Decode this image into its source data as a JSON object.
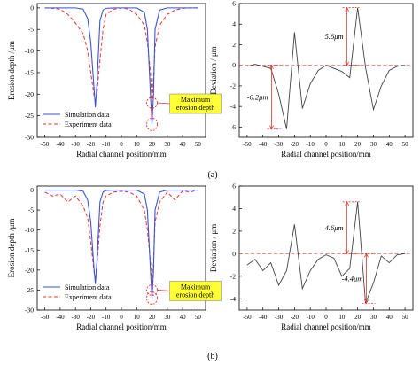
{
  "colors": {
    "simulation": "#3a55d6",
    "experiment": "#e2342c",
    "deviation_line": "#444444",
    "zero_line": "#e36a5f",
    "marker": "#e2342c",
    "callout_fill": "#ffff33",
    "axis": "#000000"
  },
  "subfig_labels": [
    "(a)",
    "(b)"
  ],
  "chart_data": [
    {
      "id": "a_left",
      "type": "line",
      "xlabel": "Radial channel position/mm",
      "ylabel": "Erosion depth /μm",
      "xlim": [
        -55,
        55
      ],
      "ylim": [
        -30,
        1
      ],
      "xticks": [
        -50,
        -40,
        -30,
        -20,
        -10,
        0,
        10,
        20,
        30,
        40,
        50
      ],
      "yticks": [
        0,
        -5,
        -10,
        -15,
        -20,
        -25,
        -30
      ],
      "legend": {
        "placement": "bottom-left",
        "entries": [
          "Simulation data",
          "Experiment data"
        ]
      },
      "callout": "Maximum\nerosion depth",
      "series": [
        {
          "name": "Simulation data",
          "x": [
            -50,
            -40,
            -30,
            -25,
            -22,
            -20,
            -18,
            -17,
            -16,
            -14,
            -12,
            -10,
            -5,
            0,
            5,
            10,
            15,
            17,
            19,
            20,
            21,
            22,
            25,
            30,
            40,
            50
          ],
          "y": [
            0,
            0,
            0,
            -0.3,
            -2.5,
            -8,
            -18,
            -23,
            -18,
            -3,
            -0.5,
            -0.1,
            0,
            0,
            0,
            0,
            -1,
            -5,
            -20,
            -27,
            -20,
            -5,
            -0.5,
            0,
            0,
            0
          ]
        },
        {
          "name": "Experiment data",
          "x": [
            -50,
            -45,
            -40,
            -35,
            -30,
            -25,
            -22,
            -20,
            -18,
            -17,
            -16,
            -14,
            -12,
            -10,
            -5,
            0,
            5,
            10,
            15,
            17,
            19,
            20,
            21,
            22,
            25,
            30,
            35,
            40,
            45,
            50
          ],
          "y": [
            0,
            -0.1,
            -0.3,
            -1.5,
            -3.5,
            -6,
            -10,
            -15,
            -20,
            -21.5,
            -20,
            -12,
            -5,
            -1.5,
            -0.3,
            0,
            -0.3,
            -1.5,
            -4,
            -8,
            -15,
            -22,
            -16,
            -9,
            -4,
            -1.5,
            -0.5,
            -0.1,
            0,
            0
          ]
        }
      ]
    },
    {
      "id": "a_right",
      "type": "line",
      "xlabel": "Radial channel position/mm",
      "ylabel": "Deviation / μm",
      "xlim": [
        -55,
        55
      ],
      "ylim": [
        -7,
        6
      ],
      "xticks": [
        -50,
        -40,
        -30,
        -20,
        -10,
        0,
        10,
        20,
        30,
        40,
        50
      ],
      "yticks": [
        -6,
        -4,
        -2,
        0,
        2,
        4,
        6
      ],
      "annotations": [
        {
          "text": "5.6μm",
          "y_top": 5.6,
          "y_bottom": 0,
          "x": 20
        },
        {
          "text": "-6.2μm",
          "y_top": 0,
          "y_bottom": -6.2,
          "x": -30
        }
      ],
      "series": [
        {
          "x": [
            -50,
            -45,
            -40,
            -35,
            -30,
            -25,
            -20,
            -15,
            -10,
            -5,
            0,
            5,
            10,
            15,
            20,
            25,
            30,
            35,
            40,
            45,
            50
          ],
          "y": [
            -0.1,
            0.1,
            -0.1,
            -0.3,
            -2.8,
            -6.2,
            3.2,
            -4.2,
            -1.8,
            -0.5,
            0,
            -0.3,
            -0.6,
            -1.2,
            5.6,
            -0.2,
            -4.3,
            -2.0,
            -0.5,
            -0.1,
            0
          ]
        }
      ]
    },
    {
      "id": "b_left",
      "type": "line",
      "xlabel": "Radial channel position/mm",
      "ylabel": "Erosion depth /μm",
      "xlim": [
        -55,
        55
      ],
      "ylim": [
        -30,
        1
      ],
      "xticks": [
        -50,
        -40,
        -30,
        -20,
        -10,
        0,
        10,
        20,
        30,
        40,
        50
      ],
      "yticks": [
        0,
        -5,
        -10,
        -15,
        -20,
        -25,
        -30
      ],
      "legend": {
        "placement": "bottom-left",
        "entries": [
          "Simulation data",
          "Experiment data"
        ]
      },
      "callout": "Maximum\nerosion depth",
      "series": [
        {
          "name": "Simulation data",
          "x": [
            -50,
            -40,
            -30,
            -25,
            -22,
            -20,
            -18,
            -17,
            -16,
            -14,
            -12,
            -10,
            -5,
            0,
            5,
            10,
            15,
            17,
            19,
            20,
            21,
            22,
            25,
            30,
            40,
            50
          ],
          "y": [
            0,
            0,
            0,
            -0.3,
            -2.5,
            -8,
            -19,
            -23.5,
            -18,
            -3,
            -0.5,
            -0.1,
            0,
            0,
            0,
            0,
            -1,
            -5,
            -20,
            -27,
            -20,
            -5,
            -0.5,
            0,
            0,
            0
          ]
        },
        {
          "name": "Experiment data",
          "x": [
            -50,
            -45,
            -40,
            -35,
            -30,
            -25,
            -22,
            -20,
            -18,
            -17,
            -16,
            -14,
            -12,
            -10,
            -5,
            0,
            5,
            10,
            15,
            17,
            19,
            20,
            21,
            22,
            25,
            30,
            35,
            40,
            45,
            50
          ],
          "y": [
            -0.5,
            -1.5,
            -1.0,
            -3.0,
            -1.5,
            -4.0,
            -7,
            -13,
            -20,
            -22.5,
            -19,
            -9,
            -3,
            -1.5,
            -0.5,
            -0.3,
            -0.5,
            -1.5,
            -5,
            -10,
            -18,
            -25,
            -18,
            -8,
            -3,
            -0.5,
            -2.5,
            -0.2,
            -0.5,
            0
          ]
        }
      ]
    },
    {
      "id": "b_right",
      "type": "line",
      "xlabel": "Radial channel position/mm",
      "ylabel": "Deviation / μm",
      "xlim": [
        -55,
        55
      ],
      "ylim": [
        -5,
        6
      ],
      "xticks": [
        -50,
        -40,
        -30,
        -20,
        -10,
        0,
        10,
        20,
        30,
        40,
        50
      ],
      "yticks": [
        -4,
        -2,
        0,
        2,
        4,
        6
      ],
      "annotations": [
        {
          "text": "4.6μm",
          "y_top": 4.6,
          "y_bottom": 0,
          "x": 20
        },
        {
          "text": "-4.4μm",
          "y_top": 0,
          "y_bottom": -4.4,
          "x": 30
        }
      ],
      "series": [
        {
          "x": [
            -50,
            -45,
            -40,
            -35,
            -30,
            -25,
            -20,
            -15,
            -10,
            -5,
            0,
            5,
            10,
            15,
            20,
            25,
            30,
            35,
            40,
            45,
            50
          ],
          "y": [
            -1.0,
            -0.5,
            -1.5,
            -0.8,
            -2.8,
            -1.5,
            2.6,
            -3.1,
            -1.5,
            -0.5,
            -0.1,
            -0.4,
            -2.0,
            -1.3,
            4.6,
            -4.4,
            -2.6,
            -0.2,
            -0.8,
            -0.1,
            0
          ]
        }
      ]
    }
  ]
}
